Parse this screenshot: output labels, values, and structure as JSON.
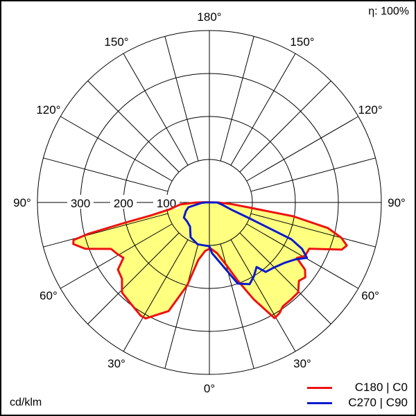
{
  "chart_data": {
    "type": "polar",
    "unit_label": "cd/klm",
    "efficiency_label": "η: 100%",
    "angle_zero": "bottom",
    "radial_max": 400,
    "radial_ring_values": [
      100,
      200,
      300,
      400
    ],
    "radial_tick_labels": [
      "100",
      "200",
      "300"
    ],
    "angle_step_deg": 15,
    "angle_labels": {
      "left": [
        [
          "0°",
          0
        ],
        [
          "30°",
          30
        ],
        [
          "60°",
          60
        ],
        [
          "90°",
          90
        ],
        [
          "120°",
          120
        ],
        [
          "150°",
          150
        ],
        [
          "180°",
          180
        ]
      ],
      "right": [
        [
          "30°",
          30
        ],
        [
          "60°",
          60
        ],
        [
          "90°",
          90
        ],
        [
          "120°",
          120
        ],
        [
          "150°",
          150
        ]
      ]
    },
    "fill_color": "#ffff80",
    "grid": true,
    "legend_position": "bottom-right",
    "series": [
      {
        "name": "C180 | C0",
        "color": "#ee1111",
        "left_plane": "C180",
        "right_plane": "C0",
        "left": [
          [
            0,
            108
          ],
          [
            4.9,
            113
          ],
          [
            10.9,
            136
          ],
          [
            15,
            200
          ],
          [
            20.6,
            270
          ],
          [
            28.8,
            308
          ],
          [
            31.3,
            308
          ],
          [
            38,
            298
          ],
          [
            44.1,
            292
          ],
          [
            48.9,
            270
          ],
          [
            53.7,
            264
          ],
          [
            57.2,
            238
          ],
          [
            61,
            246
          ],
          [
            64.7,
            253
          ],
          [
            69.5,
            308
          ],
          [
            73,
            331
          ],
          [
            74.5,
            328
          ],
          [
            75.5,
            290
          ],
          [
            76.5,
            200
          ],
          [
            77.5,
            140
          ],
          [
            80,
            95
          ],
          [
            86,
            68
          ],
          [
            90,
            30
          ],
          [
            95,
            8
          ]
        ],
        "right": [
          [
            0,
            105
          ],
          [
            8.6,
            119
          ],
          [
            15,
            150
          ],
          [
            20,
            194
          ],
          [
            24.6,
            248
          ],
          [
            29.4,
            309
          ],
          [
            32.3,
            305
          ],
          [
            35.3,
            296
          ],
          [
            40,
            295
          ],
          [
            44.6,
            294
          ],
          [
            48.8,
            277
          ],
          [
            52,
            283
          ],
          [
            54.9,
            272
          ],
          [
            57.6,
            241
          ],
          [
            60.8,
            255
          ],
          [
            65.1,
            256
          ],
          [
            70.4,
            327
          ],
          [
            72.6,
            335
          ],
          [
            75,
            318
          ],
          [
            77.8,
            282
          ],
          [
            80.6,
            198
          ],
          [
            82.5,
            99
          ],
          [
            86,
            50
          ],
          [
            90,
            20
          ],
          [
            95,
            5
          ]
        ]
      },
      {
        "name": "C270 | C90",
        "color": "#0a1acc",
        "left_plane": "C270",
        "right_plane": "C90",
        "left": [
          [
            0,
            102
          ],
          [
            15.8,
            101
          ],
          [
            28.4,
            92
          ],
          [
            38.7,
            72
          ],
          [
            50,
            68
          ],
          [
            59.3,
            69
          ],
          [
            70,
            58
          ],
          [
            77,
            50
          ],
          [
            86,
            20
          ],
          [
            90,
            10
          ]
        ],
        "right": [
          [
            0,
            102
          ],
          [
            3,
            118
          ],
          [
            13.9,
            161
          ],
          [
            19.3,
            200
          ],
          [
            26.2,
            212
          ],
          [
            30.9,
            201
          ],
          [
            36.2,
            186
          ],
          [
            39,
            208
          ],
          [
            43.8,
            212
          ],
          [
            51.1,
            224
          ],
          [
            56.5,
            240
          ],
          [
            60.4,
            261
          ],
          [
            63.4,
            241
          ],
          [
            65.8,
            209
          ],
          [
            68.4,
            101
          ],
          [
            72,
            53
          ],
          [
            80,
            30
          ],
          [
            90,
            18
          ]
        ]
      }
    ]
  }
}
